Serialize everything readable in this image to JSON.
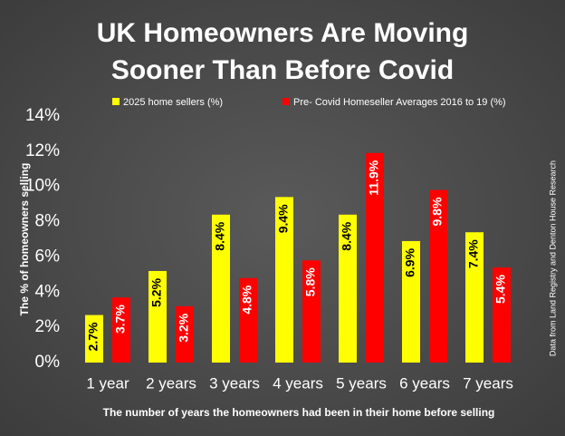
{
  "chart_data": {
    "type": "bar",
    "title": "UK Homeowners Are Moving Sooner Than Before Covid",
    "y_label": "The % of homeowners selling",
    "x_label": "The number of years the homeowners had been in their home before selling",
    "source": "Data from Land Registry and Denton House Research",
    "categories": [
      "1 year",
      "2 years",
      "3 years",
      "4 years",
      "5 years",
      "6 years",
      "7 years"
    ],
    "series": [
      {
        "name": "2025 home sellers (%)",
        "color": "#ffff00",
        "label_color": "#000000",
        "values": [
          2.7,
          5.2,
          8.4,
          9.4,
          8.4,
          6.9,
          7.4
        ],
        "value_labels": [
          "2.7%",
          "5.2%",
          "8.4%",
          "9.4%",
          "8.4%",
          "6.9%",
          "7.4%"
        ]
      },
      {
        "name": "Pre- Covid Homeseller Averages 2016 to 19 (%)",
        "color": "#ff0000",
        "label_color": "#ffffff",
        "values": [
          3.7,
          3.2,
          4.8,
          5.8,
          11.9,
          9.8,
          5.4
        ],
        "value_labels": [
          "3.7%",
          "3.2%",
          "4.8%",
          "5.8%",
          "11.9%",
          "9.8%",
          "5.4%"
        ]
      }
    ],
    "ylim": [
      0,
      14
    ],
    "yticks": [
      {
        "value": 0,
        "label": "0%"
      },
      {
        "value": 2,
        "label": "2%"
      },
      {
        "value": 4,
        "label": "4%"
      },
      {
        "value": 6,
        "label": "6%"
      },
      {
        "value": 8,
        "label": "8%"
      },
      {
        "value": 10,
        "label": "10%"
      },
      {
        "value": 12,
        "label": "12%"
      },
      {
        "value": 14,
        "label": "14%"
      }
    ],
    "legend": "top",
    "grid": false
  }
}
